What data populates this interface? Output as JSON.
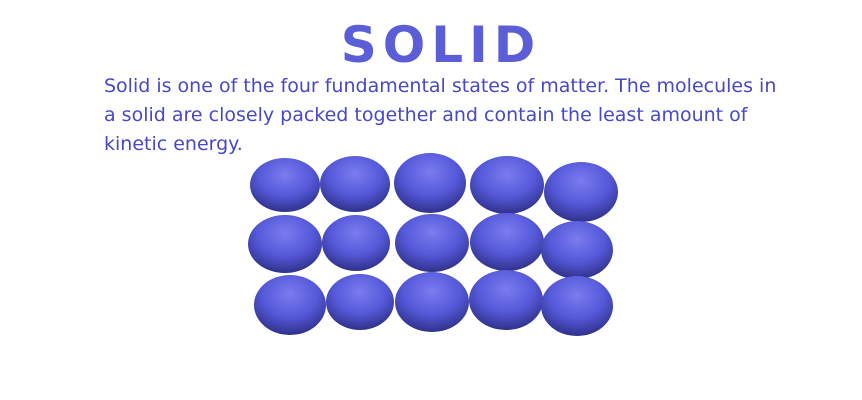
{
  "title": "SOLID",
  "description": "Solid is one of the four fundamental states of matter. The molecules in a solid are closely packed together and contain the least amount of kinetic energy.",
  "molecule_color_light": "#7a7cf0",
  "molecule_color_mid": "#5558d8",
  "molecule_color_dark": "#2d2f86",
  "molecules_rows": 3,
  "molecules_cols": 5
}
